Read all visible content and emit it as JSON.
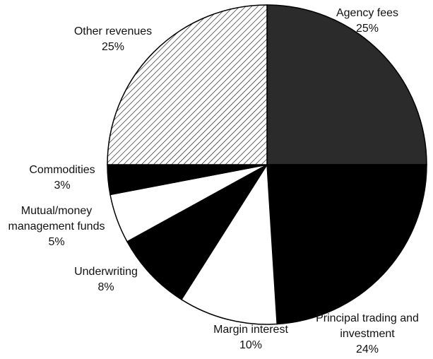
{
  "chart_data": {
    "type": "pie",
    "categories": [
      "Agency fees",
      "Principal trading and investment",
      "Margin interest",
      "Underwriting",
      "Mutual/money management funds",
      "Commodities",
      "Other revenues"
    ],
    "values": [
      25,
      24,
      10,
      8,
      5,
      3,
      25
    ],
    "value_labels": [
      "25%",
      "24%",
      "10%",
      "8%",
      "5%",
      "3%",
      "25%"
    ],
    "colors": [
      "#2b2b2b",
      "#000000",
      "#ffffff",
      "#000000",
      "#ffffff",
      "#000000",
      "#ffffff"
    ],
    "hatch": [
      false,
      false,
      false,
      false,
      false,
      false,
      true
    ]
  }
}
